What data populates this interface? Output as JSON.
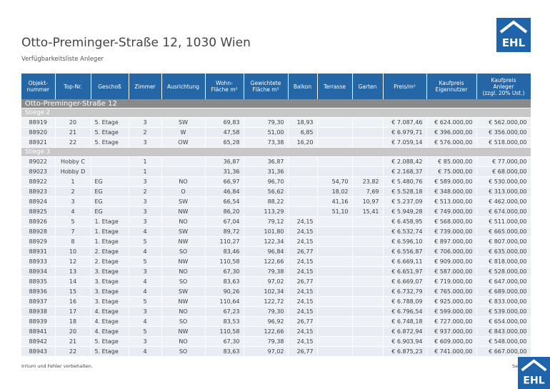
{
  "header": {
    "title": "Otto-Preminger-Straße 12, 1030 Wien",
    "subtitle": "Verfügbarkeitsliste Anleger",
    "logo": "EHL"
  },
  "table": {
    "columns": [
      "Objekt-\nnummer",
      "Top-Nr.",
      "Geschoß",
      "Zimmer",
      "Ausrichtung",
      "Wohn-\nFläche m²",
      "Gewichtete\nFläche m²",
      "Balkon",
      "Terrasse",
      "Garten",
      "Preis/m²",
      "Kaufpreis\nEigennutzer",
      "Kaufpreis\nAnleger\n(zzgl. 20% Ust.)"
    ],
    "group": "Otto-Preminger-Straße 12",
    "sections": [
      {
        "name": "Stiege 2",
        "rows": [
          [
            "88919",
            "20",
            "5. Etage",
            "3",
            "SW",
            "69,83",
            "79,30",
            "18,93",
            null,
            null,
            "€ 7.087,46",
            "€ 624.000,00",
            "€ 562.000,00"
          ],
          [
            "88920",
            "21",
            "5. Etage",
            "2",
            "W",
            "47,58",
            "51,00",
            "6,85",
            null,
            null,
            "€ 6.979,71",
            "€ 396.000,00",
            "€ 356.000,00"
          ],
          [
            "88921",
            "22",
            "5. Etage",
            "3",
            "OW",
            "65,28",
            "73,38",
            "16,20",
            null,
            null,
            "€ 7.059,14",
            "€ 576.000,00",
            "€ 518.000,00"
          ]
        ]
      },
      {
        "name": "Stiege 3",
        "rows": [
          [
            "89022",
            "Hobby C",
            null,
            "1",
            null,
            "36,87",
            "36,87",
            null,
            null,
            null,
            "€ 2.088,42",
            "€ 85.000,00",
            "€ 77.000,00"
          ],
          [
            "89023",
            "Hobby D",
            null,
            "1",
            null,
            "31,36",
            "31,36",
            null,
            null,
            null,
            "€ 2.168,37",
            "€ 75.000,00",
            "€ 68.000,00"
          ],
          [
            "88922",
            "1",
            "EG",
            "3",
            "NO",
            "66,97",
            "96,70",
            null,
            "54,70",
            "23,82",
            "€ 5.480,76",
            "€ 589.000,00",
            "€ 530.000,00"
          ],
          [
            "88923",
            "2",
            "EG",
            "2",
            "O",
            "46,84",
            "56,62",
            null,
            "18,02",
            "7,69",
            "€ 5.528,18",
            "€ 348.000,00",
            "€ 313.000,00"
          ],
          [
            "88924",
            "3",
            "EG",
            "3",
            "SW",
            "66,54",
            "88,22",
            null,
            "41,16",
            "10,97",
            "€ 5.237,09",
            "€ 513.000,00",
            "€ 462.000,00"
          ],
          [
            "88925",
            "4",
            "EG",
            "3",
            "NW",
            "86,20",
            "113,29",
            null,
            "51,10",
            "15,41",
            "€ 5.949,28",
            "€ 749.000,00",
            "€ 674.000,00"
          ],
          [
            "88926",
            "5",
            "1. Etage",
            "3",
            "NO",
            "67,04",
            "79,12",
            "24,15",
            null,
            null,
            "€ 6.458,95",
            "€ 568.000,00",
            "€ 511.000,00"
          ],
          [
            "88928",
            "7",
            "1. Etage",
            "4",
            "SW",
            "89,72",
            "101,80",
            "24,15",
            null,
            null,
            "€ 6.532,74",
            "€ 739.000,00",
            "€ 665.000,00"
          ],
          [
            "88929",
            "8",
            "1. Etage",
            "5",
            "NW",
            "110,27",
            "122,34",
            "24,15",
            null,
            null,
            "€ 6.596,10",
            "€ 897.000,00",
            "€ 807.000,00"
          ],
          [
            "88931",
            "10",
            "2. Etage",
            "4",
            "SO",
            "83,46",
            "96,84",
            "26,77",
            null,
            null,
            "€ 6.556,87",
            "€ 706.000,00",
            "€ 635.000,00"
          ],
          [
            "88933",
            "12",
            "2. Etage",
            "5",
            "NW",
            "110,58",
            "122,66",
            "24,15",
            null,
            null,
            "€ 6.669,11",
            "€ 909.000,00",
            "€ 818.000,00"
          ],
          [
            "88934",
            "13",
            "3. Etage",
            "3",
            "NO",
            "67,30",
            "79,38",
            "24,15",
            null,
            null,
            "€ 6.651,97",
            "€ 587.000,00",
            "€ 528.000,00"
          ],
          [
            "88935",
            "14",
            "3. Etage",
            "4",
            "SO",
            "83,63",
            "97,02",
            "26,77",
            null,
            null,
            "€ 6.669,07",
            "€ 719.000,00",
            "€ 647.000,00"
          ],
          [
            "88936",
            "15",
            "3. Etage",
            "4",
            "SW",
            "90,26",
            "102,34",
            "24,15",
            null,
            null,
            "€ 6.732,79",
            "€ 765.000,00",
            "€ 689.000,00"
          ],
          [
            "88937",
            "16",
            "3. Etage",
            "5",
            "NW",
            "110,64",
            "122,72",
            "24,15",
            null,
            null,
            "€ 6.788,09",
            "€ 925.000,00",
            "€ 833.000,00"
          ],
          [
            "88938",
            "17",
            "4. Etage",
            "3",
            "NO",
            "67,23",
            "79,30",
            "24,15",
            null,
            null,
            "€ 6.796,54",
            "€ 599.000,00",
            "€ 539.000,00"
          ],
          [
            "88939",
            "18",
            "4. Etage",
            "4",
            "SO",
            "83,53",
            "96,92",
            "26,77",
            null,
            null,
            "€ 6.748,18",
            "€ 727.000,00",
            "€ 654.000,00"
          ],
          [
            "88941",
            "20",
            "4. Etage",
            "5",
            "NW",
            "110,58",
            "122,66",
            "24,15",
            null,
            null,
            "€ 6.872,94",
            "€ 937.000,00",
            "€ 843.000,00"
          ],
          [
            "88942",
            "21",
            "5. Etage",
            "3",
            "NO",
            "67,30",
            "79,38",
            "24,15",
            null,
            null,
            "€ 6.903,94",
            "€ 609.000,00",
            "€ 548.000,00"
          ],
          [
            "88943",
            "22",
            "5. Etage",
            "4",
            "SO",
            "83,63",
            "97,02",
            "26,77",
            null,
            null,
            "€ 6.875,23",
            "€ 741.000,00",
            "€ 667.000,00"
          ]
        ]
      }
    ]
  },
  "footer": {
    "note": "Irrtum und Fehler vorbehalten.",
    "page": "Sei"
  }
}
